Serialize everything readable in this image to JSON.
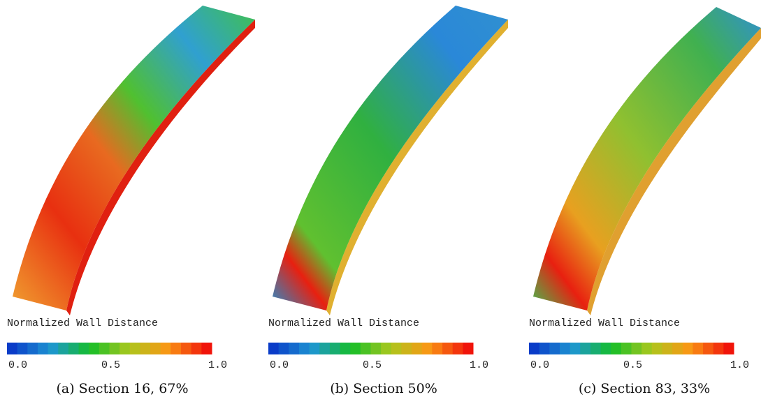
{
  "panels": [
    {
      "legend_title": "Normalized Wall Distance",
      "ticks": [
        "0.0",
        "0.5",
        "1.0"
      ],
      "caption": "(a) Section 16, 67%"
    },
    {
      "legend_title": "Normalized Wall Distance",
      "ticks": [
        "0.0",
        "0.5",
        "1.0"
      ],
      "caption": "(b) Section 50%"
    },
    {
      "legend_title": "Normalized Wall Distance",
      "ticks": [
        "0.0",
        "0.5",
        "1.0"
      ],
      "caption": "(c) Section 83, 33%"
    }
  ]
}
